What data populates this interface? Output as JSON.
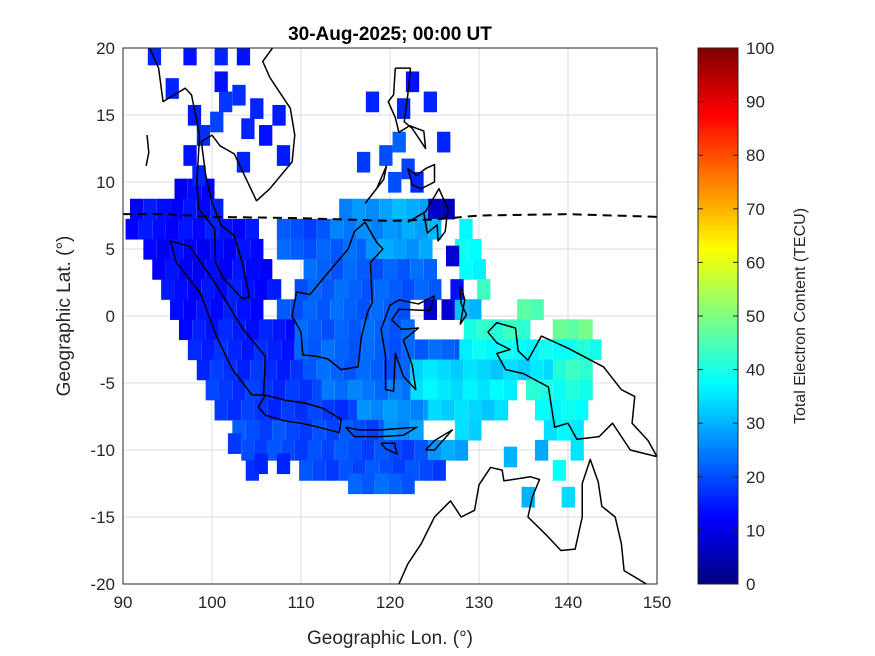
{
  "chart_data": {
    "type": "heatmap",
    "title": "30-Aug-2025; 00:00 UT",
    "xlabel": "Geographic Lon. (°)",
    "ylabel": "Geographic Lat. (°)",
    "xlim": [
      90,
      150
    ],
    "ylim": [
      -20,
      20
    ],
    "xticks": [
      90,
      100,
      110,
      120,
      130,
      140,
      150
    ],
    "yticks": [
      -20,
      -15,
      -10,
      -5,
      0,
      5,
      10,
      15,
      20
    ],
    "grid": true,
    "colorbar": {
      "label": "Total Electron Content (TECU)",
      "range": [
        0,
        100
      ],
      "ticks": [
        0,
        10,
        20,
        30,
        40,
        50,
        60,
        70,
        80,
        90,
        100
      ],
      "colormap": "jet",
      "placement": "right"
    },
    "cell_size_deg": [
      1.5,
      1.5
    ],
    "cells": [
      [
        93.5,
        19.5,
        16
      ],
      [
        97.5,
        19.5,
        14
      ],
      [
        101,
        19.5,
        16
      ],
      [
        103.5,
        19.5,
        14
      ],
      [
        95.5,
        17,
        16
      ],
      [
        101,
        17.5,
        14
      ],
      [
        103,
        16.5,
        17
      ],
      [
        98,
        15,
        15
      ],
      [
        100.5,
        14.5,
        19
      ],
      [
        101.5,
        16,
        18
      ],
      [
        99,
        13.5,
        17
      ],
      [
        104,
        14,
        16
      ],
      [
        106,
        13.5,
        14
      ],
      [
        103.5,
        11.5,
        16
      ],
      [
        97.5,
        12,
        14
      ],
      [
        108,
        12,
        15
      ],
      [
        105,
        15.5,
        16
      ],
      [
        107.5,
        15,
        15
      ],
      [
        98.5,
        10.5,
        16
      ],
      [
        122.5,
        17.5,
        14
      ],
      [
        124.5,
        16,
        16
      ],
      [
        118,
        16,
        16
      ],
      [
        121.5,
        15.5,
        16
      ],
      [
        121,
        13,
        22
      ],
      [
        126,
        13,
        16
      ],
      [
        119.5,
        12,
        20
      ],
      [
        117,
        11.5,
        18
      ],
      [
        120.5,
        10,
        20
      ],
      [
        122,
        11,
        19
      ],
      [
        123,
        10,
        16
      ],
      [
        102.5,
        -9.5,
        18
      ],
      [
        104.5,
        -11.5,
        17
      ],
      [
        108,
        -11,
        16
      ],
      [
        105.5,
        -11,
        16
      ],
      [
        124.5,
        0.5,
        8
      ],
      [
        126.5,
        0.5,
        8
      ],
      [
        127,
        4.5,
        8
      ],
      [
        127.5,
        2,
        14
      ],
      [
        135.5,
        -13.5,
        30
      ],
      [
        140,
        -13.5,
        34
      ],
      [
        133.5,
        -10.5,
        30
      ]
    ],
    "swaths": [
      [
        9.5,
        96.5,
        99.5,
        13
      ],
      [
        8,
        91.5,
        100.5,
        14
      ],
      [
        8,
        115,
        118,
        26
      ],
      [
        8,
        119.5,
        124,
        30
      ],
      [
        8,
        125,
        126.5,
        6
      ],
      [
        6.5,
        91,
        105.5,
        14
      ],
      [
        6.5,
        108,
        114,
        20
      ],
      [
        6.5,
        114,
        122,
        26
      ],
      [
        6.5,
        122,
        126,
        30
      ],
      [
        6.5,
        128.5,
        129.5,
        36
      ],
      [
        5,
        93,
        105,
        13
      ],
      [
        5,
        108,
        118,
        22
      ],
      [
        5,
        118,
        125,
        28
      ],
      [
        5,
        128,
        130,
        38
      ],
      [
        3.5,
        94,
        106,
        13
      ],
      [
        3.5,
        111,
        125,
        22
      ],
      [
        3.5,
        128.5,
        130,
        38
      ],
      [
        2,
        95,
        107,
        14
      ],
      [
        2,
        110,
        125,
        22
      ],
      [
        2,
        130.5,
        131.5,
        42
      ],
      [
        0.5,
        96,
        106,
        14
      ],
      [
        0.5,
        108,
        122,
        22
      ],
      [
        0.5,
        128,
        130,
        32
      ],
      [
        0.5,
        135,
        137,
        46
      ],
      [
        -1,
        97,
        109,
        15
      ],
      [
        -1,
        110,
        123,
        22
      ],
      [
        -1,
        129,
        136,
        42
      ],
      [
        -1,
        139,
        142,
        48
      ],
      [
        -2.5,
        98,
        109,
        16
      ],
      [
        -2.5,
        110,
        128,
        22
      ],
      [
        -2.5,
        128.5,
        140,
        38
      ],
      [
        -2.5,
        140,
        143,
        40
      ],
      [
        -4,
        99,
        110,
        17
      ],
      [
        -4,
        111,
        122,
        22
      ],
      [
        -4,
        123,
        138,
        34
      ],
      [
        -4,
        139,
        143,
        42
      ],
      [
        -5.5,
        100,
        112,
        18
      ],
      [
        -5.5,
        113,
        122,
        24
      ],
      [
        -5.5,
        123,
        134,
        36
      ],
      [
        -5.5,
        136,
        143,
        40
      ],
      [
        -7,
        101,
        117,
        18
      ],
      [
        -7,
        117,
        125,
        27
      ],
      [
        -7,
        125,
        133,
        34
      ],
      [
        -7,
        137,
        142,
        38
      ],
      [
        -8.5,
        103,
        120,
        20
      ],
      [
        -8.5,
        120,
        124,
        27
      ],
      [
        -8.5,
        128,
        130,
        34
      ],
      [
        -8.5,
        138,
        141,
        36
      ],
      [
        -10,
        104,
        124,
        20
      ],
      [
        -10,
        125,
        129,
        28
      ],
      [
        -10,
        137,
        137,
        30
      ],
      [
        -10,
        141,
        141,
        36
      ],
      [
        -11.5,
        110.5,
        126,
        20
      ],
      [
        -11.5,
        139,
        139,
        38
      ],
      [
        -12.5,
        116,
        123,
        22
      ]
    ],
    "magnetic_equator": [
      [
        90,
        7.6
      ],
      [
        95,
        7.6
      ],
      [
        100,
        7.4
      ],
      [
        110,
        7.3
      ],
      [
        120,
        7.1
      ],
      [
        125,
        7.2
      ],
      [
        130,
        7.5
      ],
      [
        140,
        7.6
      ],
      [
        150,
        7.4
      ]
    ],
    "coastlines": [
      [
        [
          95.3,
          5.6
        ],
        [
          97.5,
          5.2
        ],
        [
          100.3,
          2.5
        ],
        [
          103.5,
          -1
        ],
        [
          106,
          -3
        ],
        [
          105.8,
          -5.9
        ],
        [
          104.5,
          -5.9
        ],
        [
          102.3,
          -4
        ],
        [
          100.5,
          -1.5
        ],
        [
          98.7,
          1.7
        ],
        [
          96,
          4
        ],
        [
          95.3,
          5.6
        ]
      ],
      [
        [
          106.8,
          20
        ],
        [
          105.7,
          19
        ],
        [
          106.5,
          17.8
        ],
        [
          108.8,
          15.5
        ],
        [
          109.3,
          13.5
        ],
        [
          109,
          11.5
        ],
        [
          106.5,
          9.5
        ],
        [
          105,
          8.6
        ],
        [
          102.5,
          12.1
        ],
        [
          100.9,
          12.7
        ],
        [
          100,
          13.5
        ],
        [
          98.8,
          13
        ],
        [
          99.3,
          10.5
        ],
        [
          100,
          8.5
        ],
        [
          101,
          6.8
        ],
        [
          102.5,
          6
        ],
        [
          103.4,
          4
        ],
        [
          104.2,
          1.4
        ],
        [
          103.4,
          1.3
        ],
        [
          101.3,
          2.8
        ],
        [
          100.4,
          4
        ],
        [
          100.3,
          6.5
        ],
        [
          98.5,
          8
        ],
        [
          98.3,
          10
        ],
        [
          98.6,
          13.5
        ],
        [
          97.7,
          16.5
        ],
        [
          97,
          17
        ],
        [
          94.5,
          16
        ],
        [
          94,
          18.5
        ],
        [
          93,
          20
        ]
      ],
      [
        [
          109.5,
          1.8
        ],
        [
          111,
          1.6
        ],
        [
          113,
          3.2
        ],
        [
          115.3,
          5
        ],
        [
          116,
          6.3
        ],
        [
          117.2,
          7
        ],
        [
          118.5,
          5.5
        ],
        [
          119.2,
          5
        ],
        [
          117.8,
          4
        ],
        [
          118,
          1
        ],
        [
          117.5,
          0.3
        ],
        [
          116.8,
          -1.5
        ],
        [
          116.4,
          -3.8
        ],
        [
          114.5,
          -4
        ],
        [
          113,
          -3.2
        ],
        [
          111.7,
          -3
        ],
        [
          110.2,
          -2.9
        ],
        [
          110,
          -1.2
        ],
        [
          109,
          0
        ],
        [
          109.5,
          1.8
        ]
      ],
      [
        [
          105.2,
          -6.8
        ],
        [
          106,
          -5.9
        ],
        [
          108.3,
          -6.3
        ],
        [
          110.5,
          -6.5
        ],
        [
          112.5,
          -6.9
        ],
        [
          114.5,
          -7.7
        ],
        [
          114.3,
          -8.7
        ],
        [
          112,
          -8.3
        ],
        [
          110,
          -8
        ],
        [
          108,
          -7.8
        ],
        [
          106,
          -7.4
        ],
        [
          105.2,
          -6.8
        ]
      ],
      [
        [
          115,
          -8.3
        ],
        [
          116.5,
          -8.5
        ],
        [
          119,
          -8.5
        ],
        [
          121,
          -8.4
        ],
        [
          123,
          -8.3
        ],
        [
          121.5,
          -8.9
        ],
        [
          119,
          -9
        ],
        [
          116,
          -9
        ],
        [
          115,
          -8.3
        ]
      ],
      [
        [
          124,
          -10
        ],
        [
          125,
          -9.3
        ],
        [
          127,
          -8.5
        ],
        [
          125,
          -10
        ],
        [
          124,
          -10
        ]
      ],
      [
        [
          119,
          -9.5
        ],
        [
          120.5,
          -9.5
        ],
        [
          120.8,
          -10.3
        ],
        [
          119.5,
          -9.9
        ],
        [
          119,
          -9.5
        ]
      ],
      [
        [
          119.5,
          -5.5
        ],
        [
          119.5,
          -3
        ],
        [
          119,
          -1
        ],
        [
          120,
          0.8
        ],
        [
          121,
          1.2
        ],
        [
          123.2,
          0.9
        ],
        [
          125,
          1.5
        ],
        [
          124.5,
          0.4
        ],
        [
          121,
          0.5
        ],
        [
          120.2,
          -0.3
        ],
        [
          121.3,
          -1
        ],
        [
          123.2,
          -0.9
        ],
        [
          121.5,
          -1.8
        ],
        [
          122.5,
          -3.7
        ],
        [
          122.9,
          -5.5
        ],
        [
          121.5,
          -4.5
        ],
        [
          120.6,
          -2.8
        ],
        [
          120.4,
          -5.6
        ],
        [
          119.5,
          -5.5
        ]
      ],
      [
        [
          127.8,
          2.2
        ],
        [
          128,
          0.9
        ],
        [
          128.6,
          0.1
        ],
        [
          127.9,
          -0.6
        ],
        [
          128.4,
          1.2
        ],
        [
          128,
          2.2
        ]
      ],
      [
        [
          131,
          -1.2
        ],
        [
          132,
          -0.5
        ],
        [
          134.1,
          -0.9
        ],
        [
          134.4,
          -2.6
        ],
        [
          135.5,
          -3.3
        ],
        [
          137,
          -1.5
        ],
        [
          140,
          -2.4
        ],
        [
          144,
          -3.8
        ],
        [
          146,
          -5.5
        ],
        [
          147.5,
          -6
        ],
        [
          147.2,
          -8
        ],
        [
          149,
          -9.3
        ],
        [
          150,
          -10.5
        ],
        [
          147,
          -10
        ],
        [
          145,
          -8
        ],
        [
          143.5,
          -9
        ],
        [
          141,
          -9.2
        ],
        [
          140,
          -8
        ],
        [
          138.5,
          -8.3
        ],
        [
          137.8,
          -5.3
        ],
        [
          135,
          -4.3
        ],
        [
          133,
          -4
        ],
        [
          132,
          -2.8
        ],
        [
          133.5,
          -2.5
        ],
        [
          132,
          -2
        ],
        [
          131,
          -1.2
        ]
      ],
      [
        [
          121,
          -20
        ],
        [
          122,
          -18.5
        ],
        [
          123.5,
          -17
        ],
        [
          125,
          -15
        ],
        [
          126.8,
          -13.8
        ],
        [
          128,
          -15
        ],
        [
          129.5,
          -14.5
        ],
        [
          130,
          -12.6
        ],
        [
          131.3,
          -11.3
        ],
        [
          132.6,
          -11.5
        ],
        [
          132.8,
          -12.3
        ],
        [
          135.8,
          -12
        ],
        [
          136.8,
          -12.2
        ],
        [
          136,
          -13.5
        ],
        [
          135.5,
          -15
        ],
        [
          137.5,
          -16.3
        ],
        [
          139.2,
          -17.5
        ],
        [
          140.8,
          -17.4
        ],
        [
          141.6,
          -15
        ],
        [
          141.6,
          -12.5
        ],
        [
          142.5,
          -10.7
        ],
        [
          143.4,
          -12.4
        ],
        [
          143.8,
          -14.2
        ],
        [
          145.3,
          -15
        ],
        [
          146,
          -17
        ],
        [
          146.3,
          -19
        ],
        [
          148.8,
          -20
        ]
      ],
      [
        [
          120.6,
          18.5
        ],
        [
          122.3,
          18.5
        ],
        [
          122,
          16.5
        ],
        [
          121.6,
          14.5
        ],
        [
          122.5,
          14
        ],
        [
          124,
          12.5
        ],
        [
          123.8,
          13.8
        ],
        [
          122.2,
          14.2
        ],
        [
          121,
          13.7
        ],
        [
          120.6,
          14.8
        ],
        [
          119.8,
          16
        ],
        [
          120.4,
          16.5
        ],
        [
          120.6,
          18.5
        ]
      ],
      [
        [
          117.2,
          8.4
        ],
        [
          118.5,
          9.5
        ],
        [
          119.6,
          11.2
        ],
        [
          119.3,
          10.2
        ],
        [
          117.2,
          8.4
        ]
      ],
      [
        [
          122,
          7
        ],
        [
          124,
          7.8
        ],
        [
          125.5,
          9.5
        ],
        [
          126.5,
          8
        ],
        [
          126.2,
          6.3
        ],
        [
          125.4,
          5.6
        ],
        [
          125.3,
          6.8
        ],
        [
          124.2,
          6.2
        ],
        [
          123.8,
          7.7
        ],
        [
          122,
          7
        ]
      ],
      [
        [
          122,
          11
        ],
        [
          123,
          10.5
        ],
        [
          124,
          11
        ],
        [
          125,
          11.3
        ],
        [
          125,
          10
        ],
        [
          123.5,
          9.5
        ],
        [
          122.5,
          9.8
        ],
        [
          122,
          11
        ]
      ],
      [
        [
          92.7,
          13.5
        ],
        [
          92.9,
          12.2
        ],
        [
          92.6,
          11.2
        ]
      ]
    ]
  }
}
